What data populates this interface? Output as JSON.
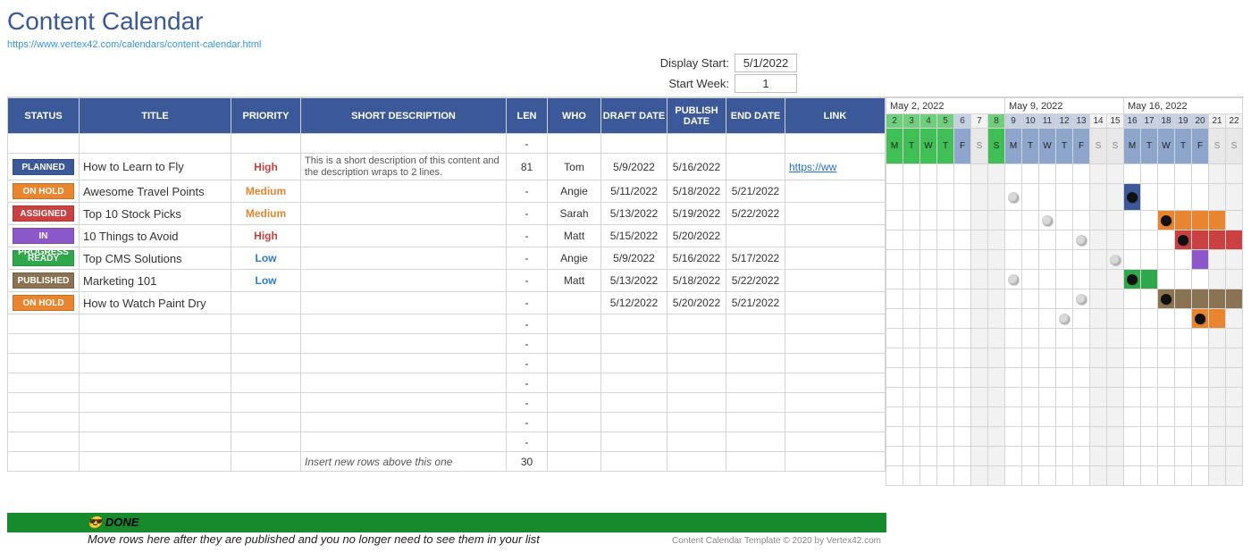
{
  "page": {
    "title": "Content Calendar",
    "url": "https://www.vertex42.com/calendars/content-calendar.html"
  },
  "controls": {
    "display_start_label": "Display Start:",
    "display_start_value": "5/1/2022",
    "start_week_label": "Start Week:",
    "start_week_value": "1"
  },
  "columns": {
    "status": "STATUS",
    "title": "TITLE",
    "priority": "PRIORITY",
    "desc": "SHORT DESCRIPTION",
    "len": "LEN",
    "who": "WHO",
    "draft": "DRAFT DATE",
    "pub": "PUBLISH DATE",
    "end": "END DATE",
    "link": "LINK"
  },
  "status_colors": {
    "PLANNED": "#3b5998",
    "ON HOLD": "#e8852e",
    "ASSIGNED": "#c94141",
    "IN PROGRESS": "#8c57c9",
    "READY": "#2fa74a",
    "PUBLISHED": "#8a7352"
  },
  "priority_colors": {
    "High": "#c94141",
    "Medium": "#e8852e",
    "Low": "#2c7bd1"
  },
  "rows": [
    {
      "status": "",
      "title": "",
      "priority": "",
      "desc": "",
      "len": "-",
      "who": "",
      "draft": "",
      "pub": "",
      "end": "",
      "link": ""
    },
    {
      "status": "PLANNED",
      "title": "How to Learn to Fly",
      "priority": "High",
      "desc": "This is a short description of this content and the description wraps to 2 lines.",
      "len": "81",
      "who": "Tom",
      "draft": "5/9/2022",
      "pub": "5/16/2022",
      "end": "",
      "link": "https://ww"
    },
    {
      "status": "ON HOLD",
      "title": "Awesome Travel Points",
      "priority": "Medium",
      "desc": "",
      "len": "-",
      "who": "Angie",
      "draft": "5/11/2022",
      "pub": "5/18/2022",
      "end": "5/21/2022",
      "link": ""
    },
    {
      "status": "ASSIGNED",
      "title": "Top 10 Stock Picks",
      "priority": "Medium",
      "desc": "",
      "len": "-",
      "who": "Sarah",
      "draft": "5/13/2022",
      "pub": "5/19/2022",
      "end": "5/22/2022",
      "link": ""
    },
    {
      "status": "IN PROGRESS",
      "title": "10 Things to Avoid",
      "priority": "High",
      "desc": "",
      "len": "-",
      "who": "Matt",
      "draft": "5/15/2022",
      "pub": "5/20/2022",
      "end": "",
      "link": ""
    },
    {
      "status": "READY",
      "title": "Top CMS Solutions",
      "priority": "Low",
      "desc": "",
      "len": "-",
      "who": "Angie",
      "draft": "5/9/2022",
      "pub": "5/16/2022",
      "end": "5/17/2022",
      "link": ""
    },
    {
      "status": "PUBLISHED",
      "title": "Marketing 101",
      "priority": "Low",
      "desc": "",
      "len": "-",
      "who": "Matt",
      "draft": "5/13/2022",
      "pub": "5/18/2022",
      "end": "5/22/2022",
      "link": ""
    },
    {
      "status": "ON HOLD",
      "title": "How to Watch Paint Dry",
      "priority": "",
      "desc": "",
      "len": "-",
      "who": "",
      "draft": "5/12/2022",
      "pub": "5/20/2022",
      "end": "5/21/2022",
      "link": ""
    },
    {
      "len": "-"
    },
    {
      "len": "-"
    },
    {
      "len": "-"
    },
    {
      "len": "-"
    },
    {
      "len": "-"
    },
    {
      "len": "-"
    },
    {
      "len": "-"
    }
  ],
  "footer_row": {
    "desc": "Insert new rows above this one",
    "len": "30"
  },
  "gantt": {
    "weeks": [
      {
        "label": "May 2, 2022",
        "days": [
          2,
          3,
          4,
          5,
          6,
          7,
          8
        ]
      },
      {
        "label": "May 9, 2022",
        "days": [
          9,
          10,
          11,
          12,
          13,
          14,
          15
        ]
      },
      {
        "label": "May 16, 2022",
        "days": [
          16,
          17,
          18,
          19,
          20,
          21,
          22
        ]
      }
    ],
    "dow": [
      "M",
      "T",
      "W",
      "T",
      "F",
      "S",
      "S"
    ],
    "today_days": [
      2,
      3,
      4,
      5,
      8
    ],
    "header_colors": {
      "today_bg": "#3fbf55",
      "today_num_bg": "#6fcf7d",
      "weekday_bg": "#8fa6cc",
      "weekday_num_bg": "#c5d0e3",
      "weekend_bg": "#e8e8e8",
      "weekend_num_bg": "#f2f2f2"
    },
    "bar_colors": {
      "PLANNED": "#3b5998",
      "ON HOLD": "#e8852e",
      "ASSIGNED": "#c94141",
      "IN PROGRESS": "#8c57c9",
      "READY": "#2fa74a",
      "PUBLISHED": "#8a7352"
    },
    "dot_colors": {
      "draft": "#d9d9d9",
      "publish": "#111111"
    },
    "row_bars": [
      [],
      [
        {
          "day": 9,
          "type": "dot",
          "c": "draft"
        },
        {
          "day": 16,
          "type": "dot",
          "c": "publish"
        },
        {
          "day": 16,
          "type": "bar",
          "status": "PLANNED"
        }
      ],
      [
        {
          "day": 11,
          "type": "dot",
          "c": "draft"
        },
        {
          "day": 18,
          "type": "dot",
          "c": "publish"
        },
        {
          "day": 18,
          "type": "bar",
          "status": "ON HOLD"
        },
        {
          "day": 19,
          "type": "bar",
          "status": "ON HOLD"
        },
        {
          "day": 20,
          "type": "bar",
          "status": "ON HOLD"
        },
        {
          "day": 21,
          "type": "bar",
          "status": "ON HOLD"
        }
      ],
      [
        {
          "day": 13,
          "type": "dot",
          "c": "draft"
        },
        {
          "day": 19,
          "type": "dot",
          "c": "publish"
        },
        {
          "day": 19,
          "type": "bar",
          "status": "ASSIGNED"
        },
        {
          "day": 20,
          "type": "bar",
          "status": "ASSIGNED"
        },
        {
          "day": 21,
          "type": "bar",
          "status": "ASSIGNED"
        },
        {
          "day": 22,
          "type": "bar",
          "status": "ASSIGNED"
        }
      ],
      [
        {
          "day": 15,
          "type": "dot",
          "c": "draft"
        },
        {
          "day": 20,
          "type": "bar",
          "status": "IN PROGRESS"
        }
      ],
      [
        {
          "day": 9,
          "type": "dot",
          "c": "draft"
        },
        {
          "day": 16,
          "type": "dot",
          "c": "publish"
        },
        {
          "day": 16,
          "type": "bar",
          "status": "READY"
        },
        {
          "day": 17,
          "type": "bar",
          "status": "READY"
        }
      ],
      [
        {
          "day": 13,
          "type": "dot",
          "c": "draft"
        },
        {
          "day": 18,
          "type": "dot",
          "c": "publish"
        },
        {
          "day": 18,
          "type": "bar",
          "status": "PUBLISHED"
        },
        {
          "day": 19,
          "type": "bar",
          "status": "PUBLISHED"
        },
        {
          "day": 20,
          "type": "bar",
          "status": "PUBLISHED"
        },
        {
          "day": 21,
          "type": "bar",
          "status": "PUBLISHED"
        },
        {
          "day": 22,
          "type": "bar",
          "status": "PUBLISHED"
        }
      ],
      [
        {
          "day": 12,
          "type": "dot",
          "c": "draft"
        },
        {
          "day": 20,
          "type": "dot",
          "c": "publish"
        },
        {
          "day": 20,
          "type": "bar",
          "status": "ON HOLD"
        },
        {
          "day": 21,
          "type": "bar",
          "status": "ON HOLD"
        }
      ],
      [],
      [],
      [],
      [],
      [],
      [],
      []
    ]
  },
  "done": {
    "emoji": "😎",
    "label": "DONE",
    "note": "Move rows here after they are published and you no longer need to see them in your list",
    "copyright": "Content Calendar Template © 2020 by Vertex42.com"
  }
}
